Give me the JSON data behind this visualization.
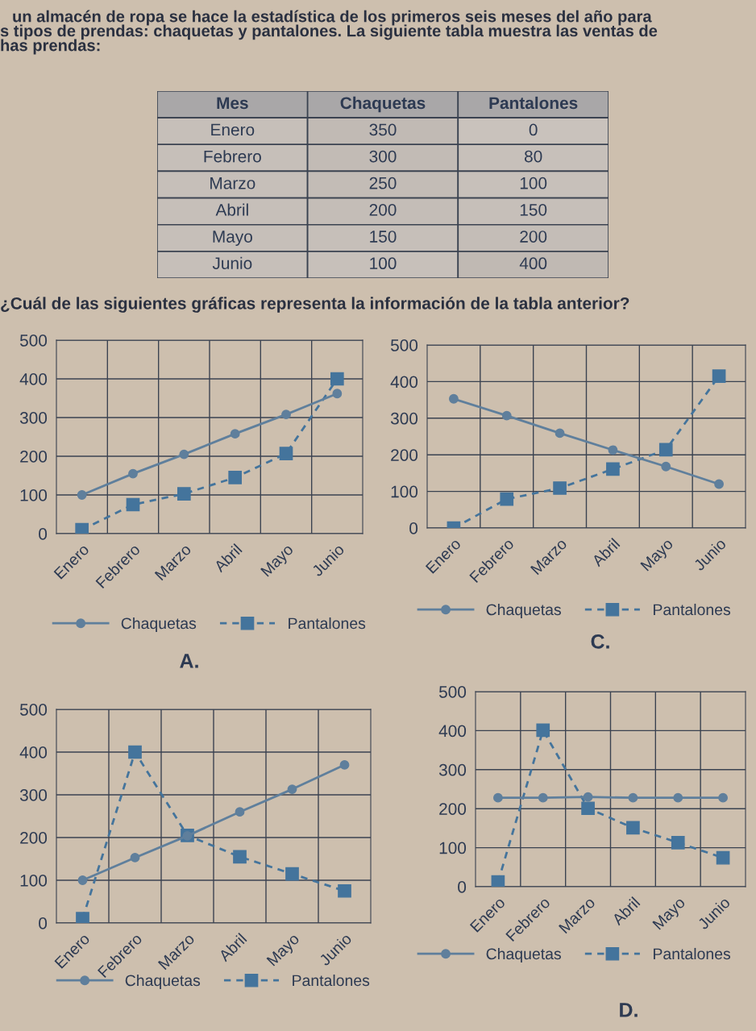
{
  "chart_data": [
    {
      "type": "heatmap",
      "ylabel": "Mes",
      "categories": [
        "Chaquetas",
        "Pantalones"
      ],
      "y_categories": [
        "Enero",
        "Febrero",
        "Marzo",
        "Abril",
        "Mayo",
        "Junio"
      ],
      "cells": [
        [
          350,
          0
        ],
        [
          300,
          80
        ],
        [
          250,
          100
        ],
        [
          200,
          150
        ],
        [
          150,
          200
        ],
        [
          100,
          400
        ]
      ],
      "data_labels": true,
      "annotations": [
        "un almacén de ropa se hace la estadística de los primeros seis meses del año para",
        "s tipos de prendas: chaquetas y pantalones. La siguiente tabla muestra las ventas de",
        "has prendas:",
        "¿Cuál de las siguientes gráficas representa la información de la tabla anterior?"
      ]
    },
    {
      "type": "line",
      "title": "A.",
      "categories": [
        "Enero",
        "Febrero",
        "Marzo",
        "Abril",
        "Mayo",
        "Junio"
      ],
      "ylim": [
        0,
        500
      ],
      "yticks": [
        0,
        100,
        200,
        300,
        400,
        500
      ],
      "grid": true,
      "legend": "bottom",
      "series": [
        {
          "name": "Chaquetas",
          "color": "#5f7f9c",
          "marker": "circle",
          "line_style": "solid",
          "values": [
            100,
            155,
            205,
            258,
            308,
            362
          ]
        },
        {
          "name": "Pantalones",
          "color": "#44749c",
          "marker": "square",
          "line_style": "dashed",
          "values": [
            10,
            75,
            103,
            145,
            207,
            400
          ]
        }
      ]
    },
    {
      "type": "line",
      "title": "C.",
      "categories": [
        "Enero",
        "Febrero",
        "Marzo",
        "Abril",
        "Mayo",
        "Junio"
      ],
      "ylim": [
        0,
        500
      ],
      "yticks": [
        0,
        100,
        200,
        300,
        400,
        500
      ],
      "grid": true,
      "legend": "bottom",
      "series": [
        {
          "name": "Chaquetas",
          "color": "#5f7f9c",
          "marker": "circle",
          "line_style": "solid",
          "values": [
            353,
            307,
            259,
            213,
            168,
            120
          ]
        },
        {
          "name": "Pantalones",
          "color": "#44749c",
          "marker": "square",
          "line_style": "dashed",
          "values": [
            0,
            79,
            109,
            161,
            214,
            415
          ]
        }
      ]
    },
    {
      "type": "line",
      "categories": [
        "Enero",
        "Febrero",
        "Marzo",
        "Abril",
        "Mayo",
        "Junio"
      ],
      "ylim": [
        0,
        500
      ],
      "yticks": [
        0,
        100,
        200,
        300,
        400,
        500
      ],
      "grid": true,
      "legend": "bottom",
      "series": [
        {
          "name": "Chaquetas",
          "color": "#5f7f9c",
          "marker": "circle",
          "line_style": "solid",
          "values": [
            100,
            153,
            204,
            260,
            313,
            370
          ]
        },
        {
          "name": "Pantalones",
          "color": "#44749c",
          "marker": "square",
          "line_style": "dashed",
          "values": [
            10,
            400,
            205,
            155,
            115,
            75
          ]
        }
      ]
    },
    {
      "type": "line",
      "title": "D.",
      "categories": [
        "Enero",
        "Febrero",
        "Marzo",
        "Abril",
        "Mayo",
        "Junio"
      ],
      "ylim": [
        0,
        500
      ],
      "yticks": [
        0,
        100,
        200,
        300,
        400,
        500
      ],
      "grid": true,
      "legend": "bottom",
      "series": [
        {
          "name": "Chaquetas",
          "color": "#5f7f9c",
          "marker": "circle",
          "line_style": "solid",
          "values": [
            228,
            228,
            230,
            228,
            228,
            228
          ]
        },
        {
          "name": "Pantalones",
          "color": "#44749c",
          "marker": "square",
          "line_style": "dashed",
          "values": [
            12,
            401,
            201,
            151,
            113,
            74
          ]
        }
      ]
    }
  ]
}
